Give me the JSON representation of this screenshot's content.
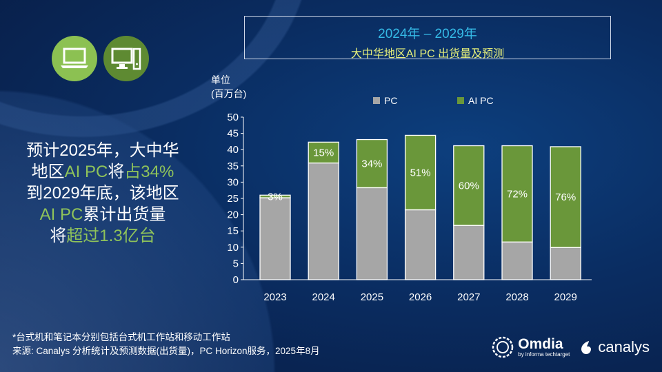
{
  "title": {
    "line1": "2024年 – 2029年",
    "line2": "大中华地区AI PC 出货量及预测"
  },
  "headline": {
    "p1": "预计2025年，大中华",
    "p2": "地区",
    "p3": "AI PC",
    "p4": "将",
    "p5": "占34%",
    "p6": "到2029年底，该地区",
    "p7": "AI PC",
    "p8": "累计出货量",
    "p9": "将",
    "p10": "超过1.3亿台"
  },
  "unit": {
    "line1": "单位",
    "line2": "(百万台)"
  },
  "icons": [
    "laptop-icon",
    "desktop-icon"
  ],
  "footer": {
    "note": "*台式机和笔记本分别包括台式机工作站和移动工作站",
    "source": "来源: Canalys 分析统计及预测数据(出货量)，PC Horizon服务，2025年8月"
  },
  "logos": {
    "omdia": "Omdia",
    "omdia_sub": "by informa techtarget",
    "canalys": "canalys"
  },
  "chart_data": {
    "type": "bar",
    "stacked": true,
    "categories": [
      "2023",
      "2024",
      "2025",
      "2026",
      "2027",
      "2028",
      "2029"
    ],
    "series": [
      {
        "name": "PC",
        "color": "#a6a6a6",
        "values": [
          25.2,
          35.9,
          28.3,
          21.5,
          16.7,
          11.6,
          9.9
        ]
      },
      {
        "name": "AI PC",
        "color": "#6a973a",
        "values": [
          0.8,
          6.4,
          14.8,
          22.9,
          24.5,
          29.6,
          31.0
        ]
      }
    ],
    "data_labels": [
      "3%",
      "15%",
      "34%",
      "51%",
      "60%",
      "72%",
      "76%"
    ],
    "yticks": [
      0,
      5,
      10,
      15,
      20,
      25,
      30,
      35,
      40,
      45,
      50
    ],
    "ylim": [
      0,
      50
    ],
    "legend": "top",
    "grid": false
  }
}
